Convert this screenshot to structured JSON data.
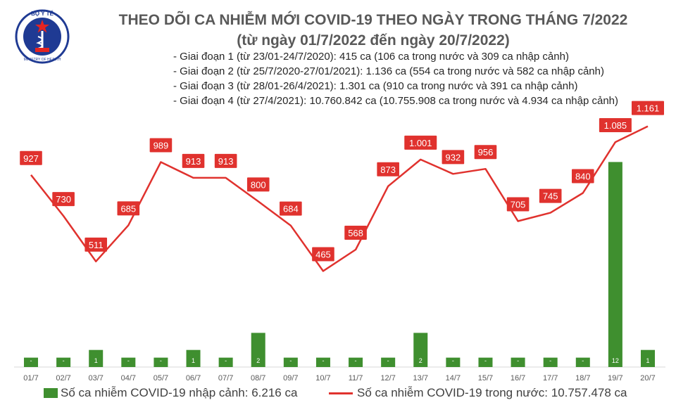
{
  "header": {
    "title_line1": "THEO DÕI CA NHIỄM MỚI COVID-19 THEO NGÀY TRONG THÁNG 7/2022",
    "title_line2": "(từ ngày 01/7/2022 đến ngày 20/7/2022)"
  },
  "logo": {
    "top_text": "BỘ Y TẾ",
    "bottom_text": "MINISTRY OF HEALTH",
    "colors": {
      "ring": "#1f3a93",
      "star": "#e52421",
      "band": "#e52421",
      "background": "#ffffff"
    }
  },
  "notes": [
    "- Giai đoạn 1 (từ 23/01-24/7/2020): 415 ca (106 ca trong nước và 309 ca nhập cảnh)",
    "- Giai đoạn 2 (từ 25/7/2020-27/01/2021): 1.136 ca (554 ca trong nước và 582 ca nhập cảnh)",
    "- Giai đoạn 3 (từ 28/01-26/4/2021): 1.301 ca (910 ca trong nước và 391 ca nhập cảnh)",
    "- Giai đoạn 4 (từ 27/4/2021): 10.760.842 ca (10.755.908 ca trong nước và 4.934 ca nhập cảnh)"
  ],
  "chart_data": {
    "type": "bar+line",
    "categories": [
      "01/7",
      "02/7",
      "03/7",
      "04/7",
      "05/7",
      "06/7",
      "07/7",
      "08/7",
      "09/7",
      "10/7",
      "11/7",
      "12/7",
      "13/7",
      "14/7",
      "15/7",
      "16/7",
      "17/7",
      "18/7",
      "19/7",
      "20/7"
    ],
    "series": [
      {
        "name": "Số ca nhiễm COVID-19 nhập cảnh: 6.216 ca",
        "type": "bar",
        "color": "#3f8f2f",
        "values": [
          0,
          0,
          1,
          0,
          0,
          1,
          0,
          2,
          0,
          0,
          0,
          0,
          2,
          0,
          0,
          0,
          0,
          0,
          12,
          1
        ],
        "labels": [
          "-",
          "-",
          "1",
          "-",
          "-",
          "1",
          "-",
          "2",
          "-",
          "-",
          "-",
          "-",
          "2",
          "-",
          "-",
          "-",
          "-",
          "-",
          "12",
          "1"
        ]
      },
      {
        "name": "Số ca nhiễm COVID-19 trong nước: 10.757.478 ca",
        "type": "line",
        "color": "#e0322e",
        "values": [
          927,
          730,
          511,
          685,
          989,
          913,
          913,
          800,
          684,
          465,
          568,
          873,
          1001,
          932,
          956,
          705,
          745,
          840,
          1085,
          1161
        ],
        "labels": [
          "927",
          "730",
          "511",
          "685",
          "989",
          "913",
          "913",
          "800",
          "684",
          "465",
          "568",
          "873",
          "1.001",
          "932",
          "956",
          "705",
          "745",
          "840",
          "1.085",
          "1.161"
        ]
      }
    ],
    "legend_position": "bottom",
    "grid": false
  }
}
